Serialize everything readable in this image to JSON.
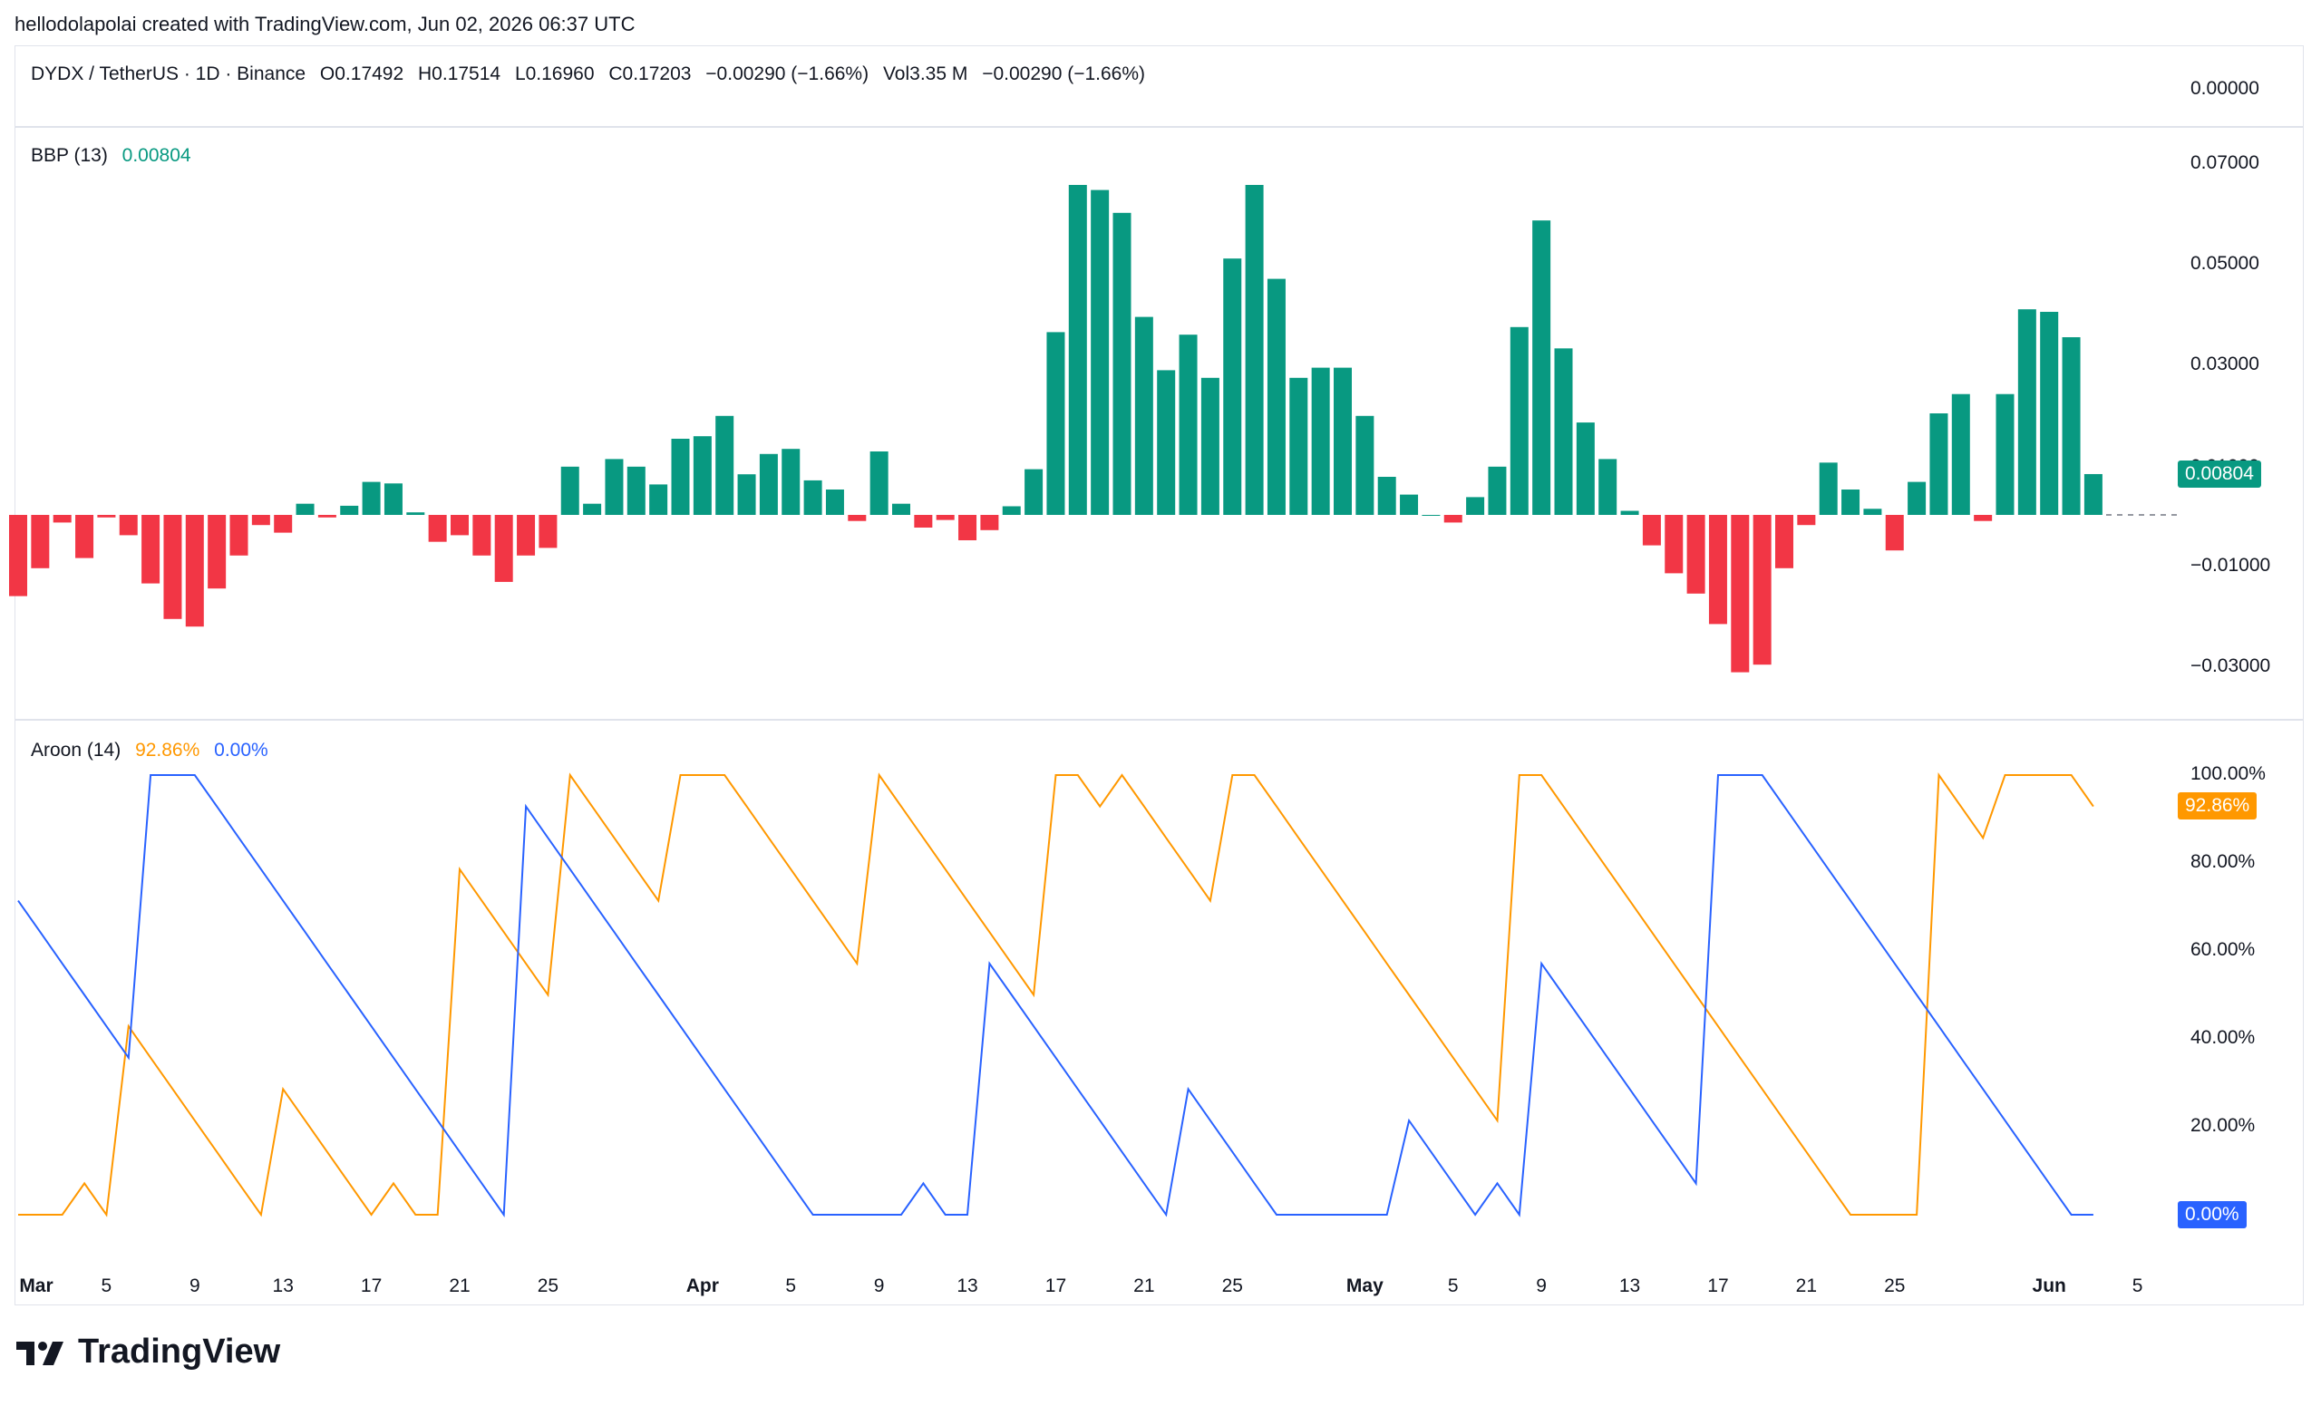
{
  "attribution": "hellodolapolai created with TradingView.com, Jun 02, 2026 06:37 UTC",
  "header": {
    "symbol": "DYDX / TetherUS · 1D · Binance",
    "open": "O0.17492",
    "high": "H0.17514",
    "low": "L0.16960",
    "close": "C0.17203",
    "change": "−0.00290 (−1.66%)",
    "volume": "Vol3.35 M",
    "vol_change": "−0.00290 (−1.66%)",
    "axis_value": "0.00000"
  },
  "bbp": {
    "name": "BBP (13)",
    "value": "0.00804",
    "tag": "0.00804",
    "ticks": [
      "0.07000",
      "0.05000",
      "0.03000",
      "−0.01000",
      "−0.03000"
    ],
    "partial_tick": "0.01000"
  },
  "aroon": {
    "name": "Aroon (14)",
    "up_value": "92.86%",
    "down_value": "0.00%",
    "ticks": [
      "100.00%",
      "80.00%",
      "60.00%",
      "40.00%",
      "20.00%"
    ],
    "up_tag": "92.86%",
    "down_tag": "0.00%"
  },
  "xaxis": {
    "labels": [
      "Mar",
      "5",
      "9",
      "13",
      "17",
      "21",
      "25",
      "Apr",
      "5",
      "9",
      "13",
      "17",
      "21",
      "25",
      "May",
      "5",
      "9",
      "13",
      "17",
      "21",
      "25",
      "Jun",
      "5"
    ]
  },
  "colors": {
    "positive": "#089981",
    "negative": "#f23645",
    "aroon_up": "#ff9800",
    "aroon_down": "#2962ff"
  },
  "logo_text": "TradingView",
  "chart_data": [
    {
      "type": "bar",
      "title": "BBP (13)",
      "ylim": [
        -0.035,
        0.07
      ],
      "x_start": "2026-03-01",
      "values": [
        -0.016,
        -0.0105,
        -0.0015,
        -0.0085,
        -0.0005,
        -0.004,
        -0.0135,
        -0.0205,
        -0.022,
        -0.0145,
        -0.008,
        -0.002,
        -0.0035,
        0.0022,
        -0.0005,
        0.0018,
        0.0065,
        0.0062,
        0.0005,
        -0.0053,
        -0.004,
        -0.008,
        -0.0132,
        -0.008,
        -0.0065,
        0.0095,
        0.0022,
        0.011,
        0.0095,
        0.006,
        0.015,
        0.0155,
        0.0195,
        0.008,
        0.012,
        0.013,
        0.0068,
        0.005,
        -0.0012,
        0.0125,
        0.0022,
        -0.0025,
        -0.001,
        -0.005,
        -0.003,
        0.0017,
        0.009,
        0.036,
        0.065,
        0.064,
        0.0595,
        0.039,
        0.0285,
        0.0355,
        0.027,
        0.0505,
        0.065,
        0.0465,
        0.027,
        0.029,
        0.029,
        0.0195,
        0.0075,
        0.004,
        0.0,
        -0.0015,
        0.0035,
        0.0095,
        0.037,
        0.058,
        0.0328,
        0.0182,
        0.011,
        0.0008,
        -0.006,
        -0.0115,
        -0.0155,
        -0.0215,
        -0.031,
        -0.0295,
        -0.0105,
        -0.002,
        0.0103,
        0.005,
        0.0012,
        -0.007,
        0.0065,
        0.02,
        0.0238,
        -0.0012,
        0.0238,
        0.0405,
        0.04,
        0.035,
        0.00804
      ],
      "last_value": 0.00804
    },
    {
      "type": "line",
      "title": "Aroon (14)",
      "ylim": [
        0,
        100
      ],
      "x_start": "2026-03-01",
      "series": [
        {
          "name": "Aroon Up",
          "values": [
            0,
            0,
            0,
            7.14,
            0,
            42.86,
            35.71,
            28.57,
            21.43,
            14.29,
            7.14,
            0,
            28.57,
            21.43,
            14.29,
            7.14,
            0,
            7.14,
            0,
            0,
            78.57,
            71.43,
            64.29,
            57.14,
            50,
            100,
            92.86,
            85.71,
            78.57,
            71.43,
            100,
            100,
            100,
            92.86,
            85.71,
            78.57,
            71.43,
            64.29,
            57.14,
            100,
            92.86,
            85.71,
            78.57,
            71.43,
            64.29,
            57.14,
            50,
            100,
            100,
            92.86,
            100,
            92.86,
            85.71,
            78.57,
            71.43,
            100,
            100,
            92.86,
            85.71,
            78.57,
            71.43,
            64.29,
            57.14,
            50,
            42.86,
            35.71,
            28.57,
            21.43,
            100,
            100,
            92.86,
            85.71,
            78.57,
            71.43,
            64.29,
            57.14,
            50,
            42.86,
            35.71,
            28.57,
            21.43,
            14.29,
            7.14,
            0,
            0,
            0,
            0,
            100,
            92.86,
            85.71,
            100,
            100,
            100,
            100,
            92.86
          ]
        },
        {
          "name": "Aroon Down",
          "values": [
            71.43,
            64.29,
            57.14,
            50,
            42.86,
            35.71,
            100,
            100,
            100,
            92.86,
            85.71,
            78.57,
            71.43,
            64.29,
            57.14,
            50,
            42.86,
            35.71,
            28.57,
            21.43,
            14.29,
            7.14,
            0,
            92.86,
            85.71,
            78.57,
            71.43,
            64.29,
            57.14,
            50,
            42.86,
            35.71,
            28.57,
            21.43,
            14.29,
            7.14,
            0,
            0,
            0,
            0,
            0,
            7.14,
            0,
            0,
            57.14,
            50,
            42.86,
            35.71,
            28.57,
            21.43,
            14.29,
            7.14,
            0,
            28.57,
            21.43,
            14.29,
            7.14,
            0,
            0,
            0,
            0,
            0,
            0,
            21.43,
            14.29,
            7.14,
            0,
            7.14,
            0,
            57.14,
            50,
            42.86,
            35.71,
            28.57,
            21.43,
            14.29,
            7.14,
            100,
            100,
            100,
            92.86,
            85.71,
            78.57,
            71.43,
            64.29,
            57.14,
            50,
            42.86,
            35.71,
            28.57,
            21.43,
            14.29,
            7.14,
            0,
            0
          ]
        }
      ]
    }
  ]
}
